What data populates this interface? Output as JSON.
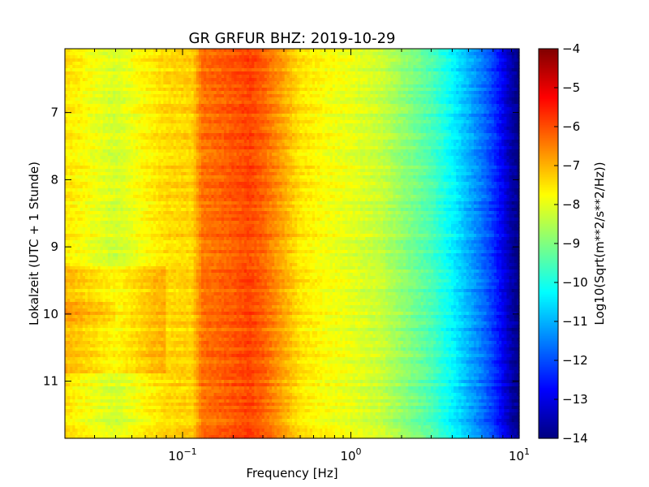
{
  "chart_data": {
    "type": "heatmap",
    "title": "GR GRFUR BHZ: 2019-10-29",
    "xlabel": "Frequency [Hz]",
    "ylabel": "Lokalzeit (UTC + 1 Stunde)",
    "x_scale": "log",
    "xlim": [
      0.02,
      10
    ],
    "ylim": [
      11.85,
      6.05
    ],
    "y_inverted": true,
    "x_ticks": [
      {
        "value": 0.1,
        "base": "10",
        "exp": "−1"
      },
      {
        "value": 1,
        "base": "10",
        "exp": "0"
      },
      {
        "value": 10,
        "base": "10",
        "exp": "1"
      }
    ],
    "y_ticks": [
      {
        "value": 7,
        "label": "7"
      },
      {
        "value": 8,
        "label": "8"
      },
      {
        "value": 9,
        "label": "9"
      },
      {
        "value": 10,
        "label": "10"
      },
      {
        "value": 11,
        "label": "11"
      }
    ],
    "colorbar": {
      "label": "Log10(Sqrt(m**2/s**2/Hz))",
      "colormap": "jet",
      "range": [
        -14,
        -4
      ],
      "ticks": [
        {
          "value": -4,
          "label": "−4"
        },
        {
          "value": -5,
          "label": "−5"
        },
        {
          "value": -6,
          "label": "−6"
        },
        {
          "value": -7,
          "label": "−7"
        },
        {
          "value": -8,
          "label": "−8"
        },
        {
          "value": -9,
          "label": "−9"
        },
        {
          "value": -10,
          "label": "−10"
        },
        {
          "value": -11,
          "label": "−11"
        },
        {
          "value": -12,
          "label": "−12"
        },
        {
          "value": -13,
          "label": "−13"
        },
        {
          "value": -14,
          "label": "−14"
        }
      ]
    },
    "spectrum_profile": {
      "frequency": [
        0.02,
        0.04,
        0.06,
        0.08,
        0.115,
        0.13,
        0.2,
        0.25,
        0.3,
        0.4,
        0.5,
        0.7,
        1.0,
        1.5,
        2.0,
        3.0,
        4.0,
        5.0,
        6.0,
        7.0,
        8.0,
        9.0,
        10.0
      ],
      "value": [
        -7.5,
        -8.2,
        -7.7,
        -7.4,
        -7.3,
        -6.4,
        -6.1,
        -5.9,
        -6.2,
        -6.9,
        -7.5,
        -7.8,
        -8.0,
        -8.3,
        -8.8,
        -9.5,
        -10.3,
        -11.0,
        -11.6,
        -12.2,
        -12.9,
        -13.6,
        -14.0
      ]
    }
  }
}
